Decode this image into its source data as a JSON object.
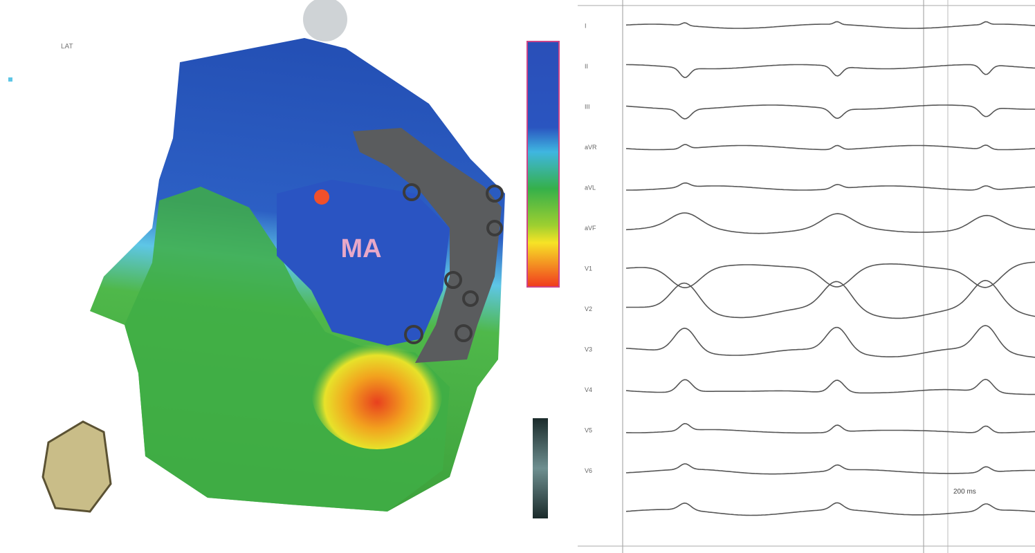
{
  "map": {
    "label": "MA",
    "legend_title": "LAT"
  },
  "ecg": {
    "leads": [
      "I",
      "II",
      "III",
      "aVR",
      "aVL",
      "aVF",
      "V1",
      "V2",
      "V3",
      "V4",
      "V5",
      "V6"
    ],
    "scale_label": "200 ms"
  }
}
